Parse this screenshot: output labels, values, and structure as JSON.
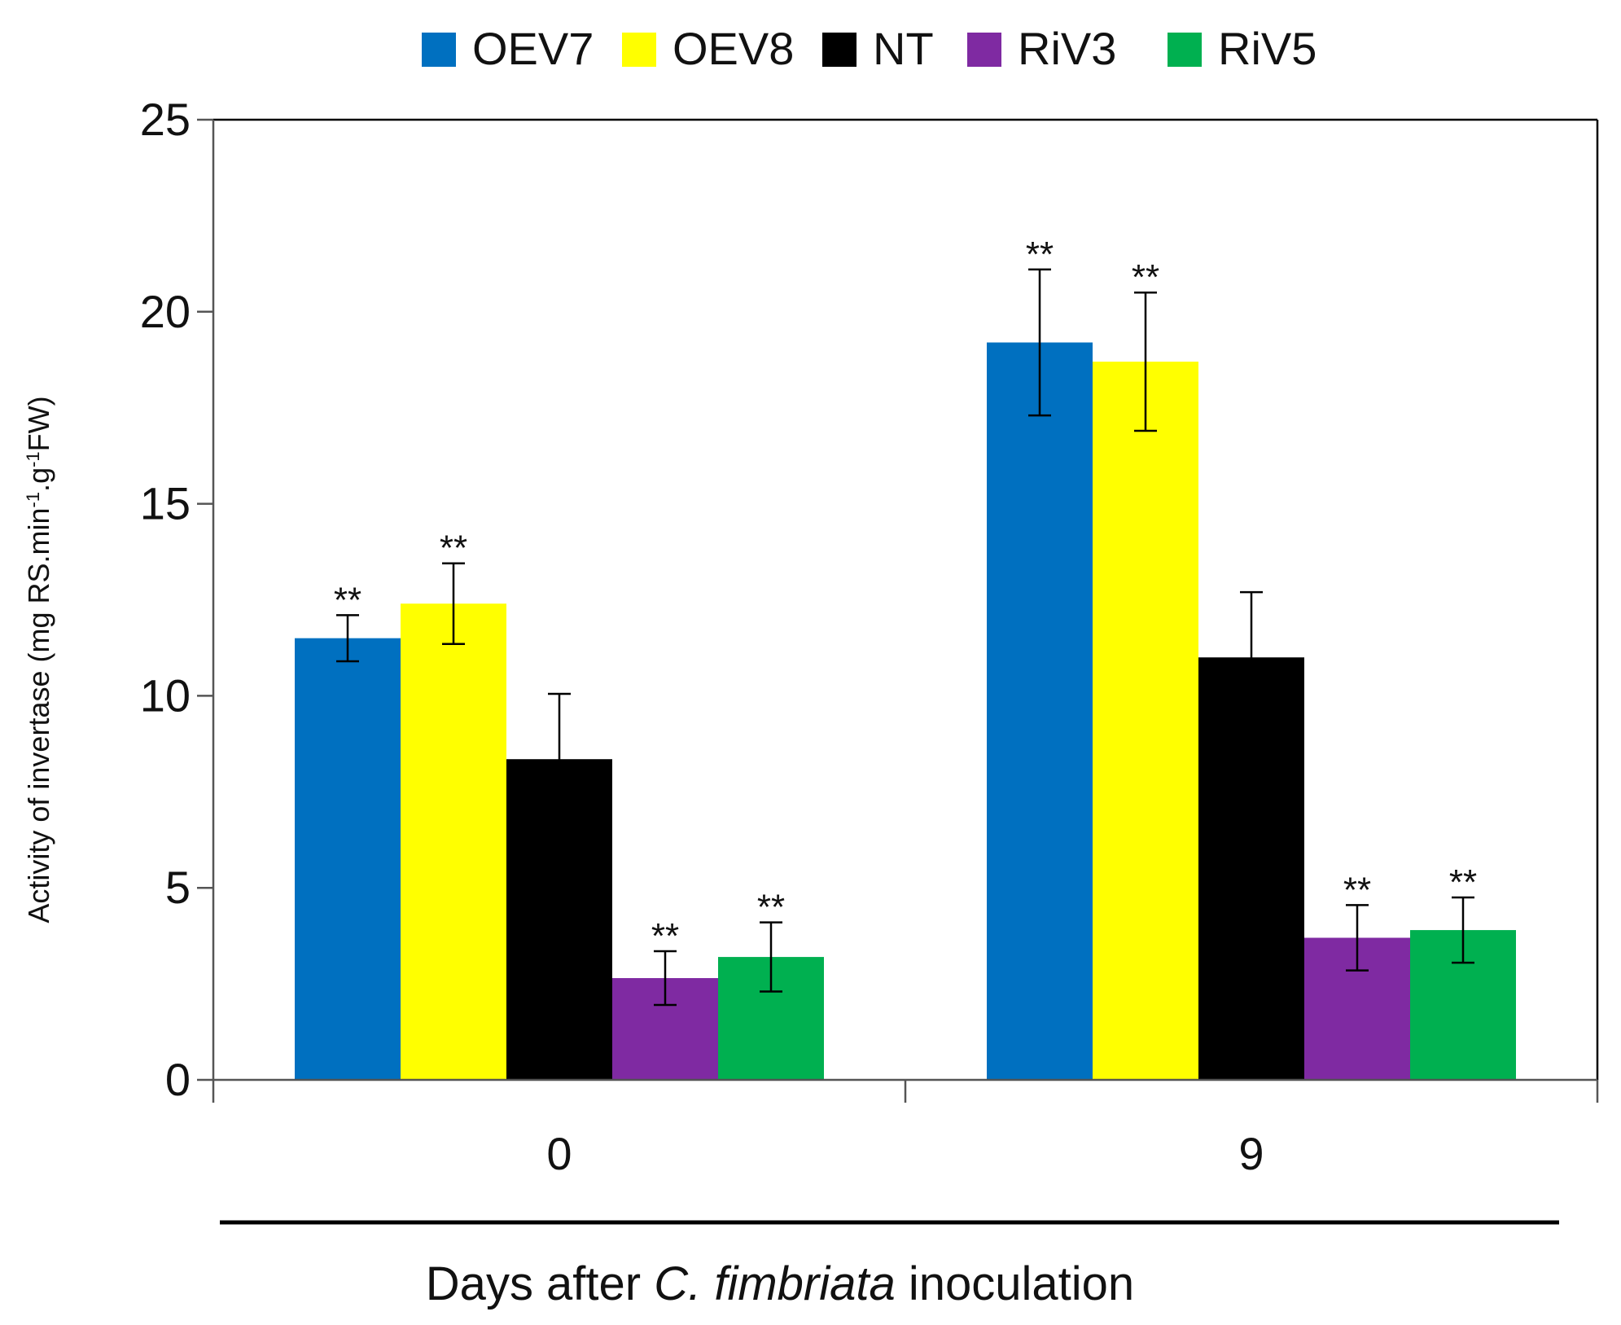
{
  "chart_data": {
    "type": "bar",
    "categories": [
      "0",
      "9"
    ],
    "series": [
      {
        "name": "OEV7",
        "color": "#0070c0",
        "values": [
          11.5,
          19.2
        ],
        "errors": [
          0.6,
          1.9
        ],
        "stars": [
          "**",
          "**"
        ]
      },
      {
        "name": "OEV8",
        "color": "#ffff00",
        "values": [
          12.4,
          18.7
        ],
        "errors": [
          1.05,
          1.8
        ],
        "stars": [
          "**",
          "**"
        ]
      },
      {
        "name": "NT",
        "color": "#000000",
        "values": [
          8.35,
          11.0
        ],
        "errors": [
          1.7,
          1.7
        ],
        "stars": [
          "",
          ""
        ]
      },
      {
        "name": "RiV3",
        "color": "#7f2aa2",
        "values": [
          2.65,
          3.7
        ],
        "errors": [
          0.7,
          0.85
        ],
        "stars": [
          "**",
          "**"
        ]
      },
      {
        "name": "RiV5",
        "color": "#00b050",
        "values": [
          3.2,
          3.9
        ],
        "errors": [
          0.9,
          0.85
        ],
        "stars": [
          "**",
          "**"
        ]
      }
    ],
    "ylim": [
      0,
      25
    ],
    "yticks": [
      "0",
      "5",
      "10",
      "15",
      "20",
      "25"
    ],
    "ytick_values": [
      0,
      5,
      10,
      15,
      20,
      25
    ],
    "ylabel": "Activity of invertase (mg RS.min⁻¹.g⁻¹FW)",
    "ylabel_parts": {
      "p1": "Activity of invertase (mg RS.min",
      "sup1": "-1",
      "p2": ".g",
      "sup2": "-1",
      "p3": "FW)"
    },
    "xlabel": "Days after C. fimbriata inoculation",
    "xlabel_parts": {
      "pre": "Days after ",
      "italic": "C. fimbriata",
      "post": " inoculation"
    },
    "legend_position": "top",
    "grid": false
  }
}
